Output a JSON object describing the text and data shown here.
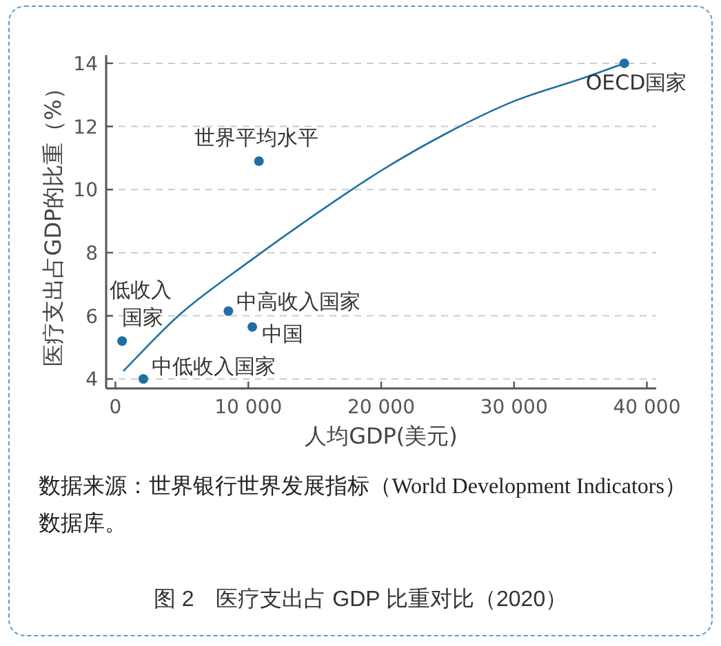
{
  "chart_data": {
    "type": "scatter",
    "title": "图 2　医疗支出占 GDP 比重对比（2020）",
    "xlabel": "人均GDP(美元)",
    "ylabel": "医疗支出占GDP的比重（%）",
    "xlim": [
      -700,
      40700
    ],
    "ylim": [
      3.7,
      14.26
    ],
    "xticks": [
      0,
      {
        "value": 10000,
        "label": "10 000"
      },
      {
        "value": 20000,
        "label": "20 000"
      },
      {
        "value": 30000,
        "label": "30 000"
      },
      {
        "value": 40000,
        "label": "40 000"
      }
    ],
    "yticks": [
      4,
      6,
      8,
      10,
      12,
      14
    ],
    "grid": "y",
    "marker": "circle",
    "series": [
      {
        "type": "scatter",
        "color": "#1f6fa3",
        "x": [
          500,
          2100,
          8500,
          10300,
          10800,
          38300
        ],
        "values": [
          5.2,
          4.0,
          6.15,
          5.65,
          10.9,
          14.0
        ]
      },
      {
        "type": "line",
        "color": "#1f6fa3",
        "marker": "none",
        "line_style": "solid",
        "x": [
          600,
          5000,
          10000,
          15000,
          20000,
          25000,
          30000,
          35000,
          38300
        ],
        "values": [
          4.25,
          6.1,
          7.7,
          9.2,
          10.6,
          11.8,
          12.8,
          13.5,
          14.0
        ]
      }
    ],
    "annotations": [
      {
        "text": "低收入国家",
        "x": 500,
        "y": 5.2
      },
      {
        "text": "中低收入国家",
        "x": 2100,
        "y": 4.0
      },
      {
        "text": "中高收入国家",
        "x": 8500,
        "y": 6.15
      },
      {
        "text": "中国",
        "x": 10300,
        "y": 5.65
      },
      {
        "text": "世界平均水平",
        "x": 10800,
        "y": 10.9
      },
      {
        "text": "OECD国家",
        "x": 38300,
        "y": 14.0
      },
      "数据来源：世界银行世界发展指标（World Development Indicators）数据库。"
    ]
  }
}
